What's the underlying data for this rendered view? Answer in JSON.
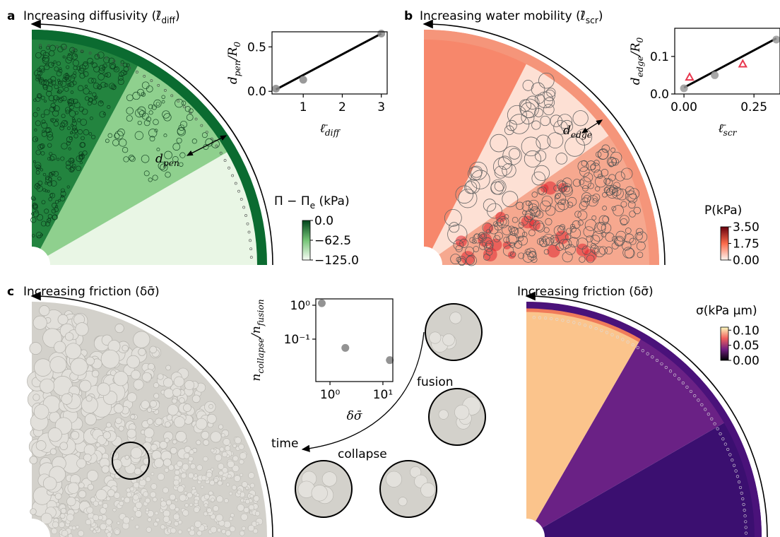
{
  "panels": [
    {
      "label": "a",
      "title": [
        {
          "text": "Increasing diffusivity (ℓ̄"
        },
        {
          "sub": "diff"
        },
        {
          "text": ")"
        }
      ]
    },
    {
      "label": "b",
      "title": [
        {
          "text": "Increasing water mobility (ℓ̄"
        },
        {
          "sub": "scr"
        },
        {
          "text": ")"
        }
      ]
    },
    {
      "label": "c",
      "title": [
        {
          "text": "Increasing friction (δσ̄)"
        }
      ]
    },
    {
      "title": [
        {
          "text": "Increasing friction (δσ̄)"
        }
      ]
    }
  ],
  "chart_data": [
    {
      "type": "scatter",
      "xlabel": [
        {
          "text": "ℓ̄"
        },
        {
          "sub": "diff"
        }
      ],
      "ylabel": [
        {
          "text": "d"
        },
        {
          "sub": "pen"
        },
        {
          "text": "/R"
        },
        {
          "sub": "0"
        }
      ],
      "xlim": [
        0.2,
        3.15
      ],
      "ylim": [
        -0.03,
        0.67
      ],
      "xticks": [
        1,
        2,
        3
      ],
      "yticks": [
        {
          "value": 0,
          "label": "0.0"
        },
        {
          "value": 0.5,
          "label": "0.5"
        }
      ],
      "series": [
        {
          "color": "#888888",
          "marker": "circle",
          "x": [
            0.3,
            1.0,
            3.0
          ],
          "values": [
            0.03,
            0.13,
            0.65
          ]
        }
      ],
      "fit": {
        "color": "#000000",
        "x": [
          0.3,
          3.0
        ],
        "values": [
          0.02,
          0.65
        ]
      }
    },
    {
      "type": "scatter",
      "xlabel": [
        {
          "text": "ℓ̄"
        },
        {
          "sub": "scr"
        }
      ],
      "ylabel": [
        {
          "text": "d"
        },
        {
          "sub": "edge"
        },
        {
          "text": "/R"
        },
        {
          "sub": "0"
        }
      ],
      "xlim": [
        -0.033,
        0.343
      ],
      "ylim": [
        0,
        0.175
      ],
      "xticks": [
        {
          "value": 0,
          "label": "0.00"
        },
        {
          "value": 0.25,
          "label": "0.25"
        }
      ],
      "yticks": [
        {
          "value": 0,
          "label": "0.0"
        },
        {
          "value": 0.1,
          "label": "0.1"
        }
      ],
      "series": [
        {
          "color": "#999999",
          "marker": "circle",
          "x": [
            0.0,
            0.11,
            0.33
          ],
          "values": [
            0.015,
            0.05,
            0.145
          ]
        },
        {
          "color": "#e8384f",
          "marker": "triangle",
          "x": [
            0.02,
            0.21
          ],
          "values": [
            0.045,
            0.08
          ]
        }
      ],
      "fit": {
        "color": "#000000",
        "x": [
          0.0,
          0.33
        ],
        "values": [
          0.017,
          0.148
        ]
      }
    },
    {
      "type": "scatter",
      "xlog": true,
      "ylog": true,
      "xlabel": [
        {
          "text": "δσ̄"
        }
      ],
      "ylabel": [
        {
          "text": "n"
        },
        {
          "sub": "collapse"
        },
        {
          "text": "/n"
        },
        {
          "sub": "fusion"
        }
      ],
      "xlim": [
        0.54,
        15.4
      ],
      "ylim": [
        0.0056,
        1.54
      ],
      "xticks": [
        {
          "value": 1,
          "label": "10⁰"
        },
        {
          "value": 10,
          "label": "10¹"
        }
      ],
      "yticks": [
        {
          "value": 0.1,
          "label": "10⁻¹"
        },
        {
          "value": 1,
          "label": "10⁰"
        }
      ],
      "series": [
        {
          "color": "#808080",
          "marker": "circle",
          "x": [
            0.7,
            1.95,
            13.5
          ],
          "values": [
            1.15,
            0.055,
            0.024
          ]
        }
      ]
    }
  ],
  "colorbars": [
    {
      "title": [
        {
          "text": "Π − Π"
        },
        {
          "sub": "e"
        },
        {
          "text": " (kPa)"
        }
      ],
      "lim": [
        -125,
        0
      ],
      "colors": [
        "#f7fcf5",
        "#74c476",
        "#00441b"
      ],
      "ticks": [
        {
          "value": 0,
          "label": "0.0"
        },
        {
          "value": -62.5,
          "label": "−62.5"
        },
        {
          "value": -125,
          "label": "−125.0"
        }
      ]
    },
    {
      "title": [
        {
          "text": "P"
        },
        {
          "text": "(kPa)"
        }
      ],
      "lim": [
        0,
        3.5
      ],
      "colors": [
        "#fff5f0",
        "#fb6a4a",
        "#67000d"
      ],
      "ticks": [
        {
          "value": 3.5,
          "label": "3.50"
        },
        {
          "value": 1.75,
          "label": "1.75"
        },
        {
          "value": 0,
          "label": "0.00"
        }
      ]
    },
    {
      "title": [
        {
          "text": "σ"
        },
        {
          "text": "(kPa μm)"
        }
      ],
      "lim": [
        0,
        0.11
      ],
      "colors": [
        "#000004",
        "#721f81",
        "#f1605d",
        "#fcfdbf"
      ],
      "ticks": [
        {
          "value": 0.1,
          "label": "0.10"
        },
        {
          "value": 0.05,
          "label": "0.05"
        },
        {
          "value": 0,
          "label": "0.00"
        }
      ]
    }
  ],
  "annotations": {
    "d_pen": [
      {
        "text": "d"
      },
      {
        "sub": "pen"
      }
    ],
    "d_edge": [
      {
        "text": "d"
      },
      {
        "sub": "edge"
      }
    ],
    "fusion": "fusion",
    "time": "time",
    "collapse": "collapse"
  }
}
